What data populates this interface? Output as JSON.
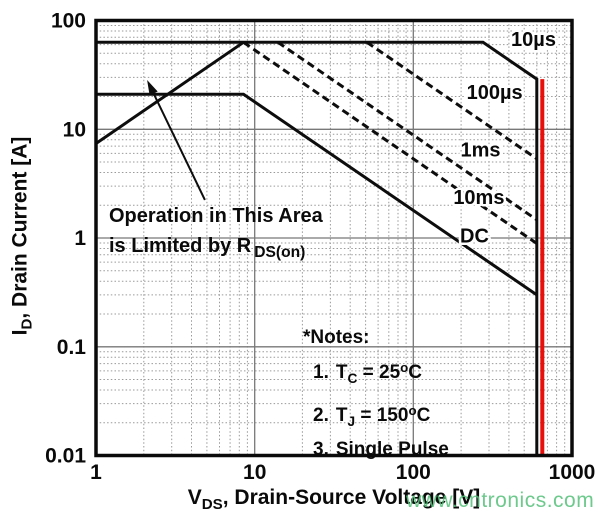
{
  "watermark": {
    "text": "www.cntronics.com",
    "color": "#55c07a"
  },
  "annotation": {
    "line1": "Operation in This Area",
    "line2_pre": "is Limited by R",
    "line2_sub": "DS(on)"
  },
  "notes": {
    "title": "*Notes:",
    "items": [
      {
        "num": "1.",
        "sym": "T",
        "sub": "C",
        "mid": " = 25",
        "sup": "o",
        "end": "C"
      },
      {
        "num": "2.",
        "sym": "T",
        "sub": "J",
        "mid": " = 150",
        "sup": "o",
        "end": "C"
      },
      {
        "num": "3.",
        "sym": "",
        "sub": "",
        "mid": "Single Pulse",
        "sup": "",
        "end": ""
      }
    ]
  },
  "chart_data": {
    "type": "line",
    "title": "",
    "xlabel": "V_DS, Drain-Source Voltage [V]",
    "ylabel": "I_D, Drain Current [A]",
    "axes": {
      "x": {
        "sym": "V",
        "sub": "DS",
        "rest": ", Drain-Source Voltage [V]"
      },
      "y": {
        "sym": "I",
        "sub": "D",
        "rest": ", Drain Current [A]"
      }
    },
    "xscale": "log",
    "yscale": "log",
    "xlim": [
      1,
      1000
    ],
    "ylim": [
      0.01,
      100
    ],
    "grid": {
      "major": true,
      "minor": true
    },
    "legend_position": "on-curve-labels",
    "x_ticks": [
      {
        "v": 1,
        "label": "1"
      },
      {
        "v": 10,
        "label": "10"
      },
      {
        "v": 100,
        "label": "100"
      },
      {
        "v": 1000,
        "label": "1000"
      }
    ],
    "y_ticks": [
      {
        "v": 100,
        "label": "100"
      },
      {
        "v": 10,
        "label": "10"
      },
      {
        "v": 1,
        "label": "1"
      },
      {
        "v": 0.1,
        "label": "0.1"
      },
      {
        "v": 0.01,
        "label": "0.01"
      }
    ],
    "series": [
      {
        "name": "rdson-limit",
        "label": "",
        "style": "solid",
        "points": [
          [
            1,
            7.4
          ],
          [
            8.5,
            63
          ]
        ]
      },
      {
        "name": "10us",
        "label": "10µs",
        "style": "solid",
        "points": [
          [
            1,
            63
          ],
          [
            275,
            63
          ],
          [
            600,
            28.9
          ],
          [
            600,
            0.01
          ]
        ],
        "label_at": [
          572,
          58
        ]
      },
      {
        "name": "100us",
        "label": "100µs",
        "style": "dashed",
        "points": [
          [
            51,
            63
          ],
          [
            600,
            5.35
          ]
        ],
        "label_at": [
          325,
          19
        ]
      },
      {
        "name": "1ms",
        "label": "1ms",
        "style": "dashed",
        "points": [
          [
            14,
            63
          ],
          [
            600,
            1.47
          ]
        ],
        "label_at": [
          265,
          5.6
        ]
      },
      {
        "name": "10ms",
        "label": "10ms",
        "style": "dashed",
        "points": [
          [
            8.5,
            63
          ],
          [
            600,
            0.89
          ]
        ],
        "label_at": [
          259,
          2.05
        ]
      },
      {
        "name": "dc",
        "label": "DC",
        "style": "solid",
        "points": [
          [
            1,
            21
          ],
          [
            8.5,
            21
          ],
          [
            600,
            0.3
          ]
        ],
        "label_at": [
          243,
          0.91
        ]
      }
    ],
    "breakdown_line": {
      "v": 650,
      "from_i": 28.9,
      "to_i": 0.01,
      "color": "#e8100c"
    },
    "annotation_arrow": {
      "from": [
        4.86,
        2.24
      ],
      "to": [
        2.1,
        28.4
      ]
    },
    "colors": {
      "curve": "#0d0d0d",
      "grid_major": "#787878",
      "grid_minor": "#9a9a9a",
      "frame": "#0a0a0a",
      "red_line": "#e8100c"
    }
  }
}
